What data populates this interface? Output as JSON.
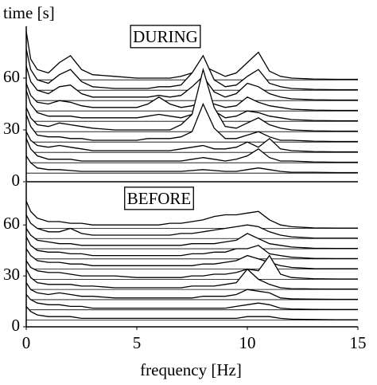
{
  "chart_data": [
    {
      "type": "ridgeline",
      "title": "DURING",
      "ylabel": "time [s]",
      "xlim": [
        0,
        15
      ],
      "ylim": [
        0,
        90
      ],
      "yticks": [
        0,
        30,
        60
      ],
      "x": [
        0,
        0.2,
        0.5,
        1,
        1.5,
        2,
        2.5,
        3,
        4,
        5,
        5.5,
        6,
        6.5,
        7,
        7.5,
        8,
        8.5,
        9,
        9.5,
        10,
        10.5,
        11,
        11.5,
        12,
        13,
        14,
        15
      ],
      "series": [
        {
          "time": 5,
          "values": [
            10,
            6,
            3,
            2,
            2,
            1.5,
            1,
            1,
            1,
            1,
            1,
            1,
            1,
            1,
            1.5,
            2,
            1.5,
            1,
            1,
            2,
            3,
            2,
            1,
            0.5,
            0.5,
            0.3,
            0.3
          ]
        },
        {
          "time": 11,
          "values": [
            14,
            8,
            4,
            2,
            2,
            2,
            1,
            1,
            1,
            1,
            1,
            1,
            1,
            1,
            2,
            3,
            2,
            1,
            2,
            4,
            8,
            3,
            1,
            1,
            0.5,
            0.3,
            0.3
          ]
        },
        {
          "time": 17,
          "values": [
            12,
            7,
            4,
            3,
            4,
            3,
            2,
            1,
            1,
            1,
            1,
            1,
            1,
            2,
            3,
            4,
            2,
            2,
            3,
            6,
            3,
            8,
            2,
            1,
            0.5,
            0.3,
            0.3
          ]
        },
        {
          "time": 23,
          "values": [
            16,
            9,
            4,
            3,
            3,
            2,
            2,
            1,
            1,
            1,
            2,
            2,
            2,
            3,
            6,
            22,
            8,
            2,
            2,
            4,
            6,
            3,
            1,
            1,
            0.5,
            0.3,
            0.3
          ]
        },
        {
          "time": 29,
          "values": [
            14,
            8,
            4,
            3,
            5,
            4,
            3,
            2,
            1,
            1,
            1,
            1,
            1,
            4,
            10,
            36,
            14,
            3,
            2,
            5,
            8,
            4,
            2,
            1,
            0.5,
            0.3,
            0.3
          ]
        },
        {
          "time": 35,
          "values": [
            18,
            10,
            5,
            3,
            3,
            3,
            2,
            2,
            2,
            2,
            3,
            4,
            3,
            2,
            4,
            12,
            6,
            2,
            3,
            6,
            5,
            3,
            2,
            1,
            0.5,
            0.3,
            0.3
          ]
        },
        {
          "time": 41,
          "values": [
            16,
            9,
            5,
            4,
            6,
            5,
            3,
            2,
            2,
            2,
            4,
            8,
            4,
            2,
            3,
            6,
            4,
            2,
            3,
            8,
            5,
            3,
            2,
            1,
            0.5,
            0.3,
            0.3
          ]
        },
        {
          "time": 47,
          "values": [
            20,
            11,
            6,
            4,
            8,
            9,
            4,
            2,
            2,
            2,
            2,
            3,
            2,
            3,
            8,
            14,
            5,
            2,
            4,
            10,
            8,
            4,
            2,
            1,
            0.5,
            0.3,
            0.3
          ]
        },
        {
          "time": 53,
          "values": [
            24,
            12,
            6,
            4,
            9,
            12,
            5,
            2,
            1,
            1,
            1,
            2,
            2,
            3,
            10,
            20,
            6,
            2,
            3,
            8,
            12,
            4,
            2,
            1,
            0.5,
            0.3,
            0.3
          ]
        },
        {
          "time": 59,
          "values": [
            28,
            12,
            6,
            4,
            10,
            14,
            6,
            3,
            2,
            1,
            1,
            1,
            1,
            2,
            4,
            8,
            5,
            2,
            4,
            10,
            16,
            5,
            2,
            1,
            0.5,
            0.3,
            0.3
          ]
        }
      ]
    },
    {
      "type": "ridgeline",
      "title": "BEFORE",
      "xlabel": "frequency [Hz]",
      "xlim": [
        0,
        15
      ],
      "xticks": [
        0,
        5,
        10,
        15
      ],
      "ylim": [
        0,
        85
      ],
      "yticks": [
        0,
        30,
        60
      ],
      "x": [
        0,
        0.2,
        0.5,
        1,
        1.5,
        2,
        2.5,
        3,
        4,
        5,
        5.5,
        6,
        6.5,
        7,
        7.5,
        8,
        8.5,
        9,
        9.5,
        10,
        10.5,
        11,
        11.5,
        12,
        13,
        14,
        15
      ],
      "series": [
        {
          "time": 4,
          "values": [
            8,
            5,
            3,
            2,
            2,
            2,
            1,
            1,
            1,
            1,
            1,
            1,
            1,
            1,
            1,
            1,
            1,
            1,
            1,
            2,
            2,
            2,
            1,
            0.5,
            0.3,
            0.2,
            0.2
          ]
        },
        {
          "time": 10,
          "values": [
            9,
            6,
            4,
            3,
            3,
            2,
            2,
            1,
            1,
            1,
            1,
            1,
            1,
            1,
            1,
            1,
            1,
            1,
            2,
            3,
            4,
            3,
            1,
            0.5,
            0.3,
            0.2,
            0.2
          ]
        },
        {
          "time": 16,
          "values": [
            10,
            6,
            4,
            3,
            4,
            3,
            2,
            2,
            1,
            1,
            1,
            1,
            1,
            1,
            1,
            2,
            2,
            2,
            3,
            6,
            5,
            4,
            1,
            0.5,
            0.3,
            0.2,
            0.2
          ]
        },
        {
          "time": 22,
          "values": [
            12,
            7,
            4,
            3,
            3,
            3,
            2,
            2,
            1,
            1,
            1,
            1,
            1,
            1,
            2,
            2,
            2,
            3,
            4,
            12,
            6,
            3,
            1,
            0.5,
            0.3,
            0.2,
            0.2
          ]
        },
        {
          "time": 28,
          "values": [
            11,
            7,
            5,
            4,
            4,
            3,
            2,
            2,
            2,
            1,
            1,
            1,
            1,
            1,
            2,
            2,
            3,
            3,
            4,
            6,
            5,
            14,
            3,
            1,
            0.3,
            0.2,
            0.2
          ]
        },
        {
          "time": 34,
          "values": [
            12,
            8,
            5,
            4,
            4,
            3,
            3,
            2,
            2,
            2,
            2,
            2,
            2,
            2,
            2,
            3,
            3,
            4,
            5,
            8,
            6,
            4,
            2,
            1,
            0.3,
            0.2,
            0.2
          ]
        },
        {
          "time": 40,
          "values": [
            13,
            8,
            5,
            4,
            4,
            3,
            3,
            2,
            2,
            2,
            2,
            2,
            2,
            2,
            3,
            3,
            4,
            4,
            6,
            6,
            8,
            3,
            2,
            1,
            0.3,
            0.2,
            0.2
          ]
        },
        {
          "time": 46,
          "values": [
            12,
            8,
            5,
            4,
            3,
            3,
            2,
            2,
            2,
            2,
            2,
            2,
            2,
            2,
            3,
            3,
            3,
            4,
            5,
            9,
            6,
            3,
            2,
            1,
            0.3,
            0.2,
            0.2
          ]
        },
        {
          "time": 52,
          "values": [
            14,
            9,
            6,
            4,
            4,
            6,
            3,
            2,
            2,
            2,
            2,
            2,
            2,
            3,
            3,
            4,
            5,
            6,
            7,
            8,
            7,
            4,
            2,
            1,
            0.3,
            0.2,
            0.2
          ]
        },
        {
          "time": 58,
          "values": [
            16,
            10,
            6,
            4,
            4,
            3,
            3,
            2,
            2,
            2,
            2,
            2,
            3,
            3,
            4,
            5,
            7,
            8,
            8,
            9,
            10,
            5,
            2,
            1,
            0.3,
            0.2,
            0.2
          ]
        }
      ]
    }
  ]
}
